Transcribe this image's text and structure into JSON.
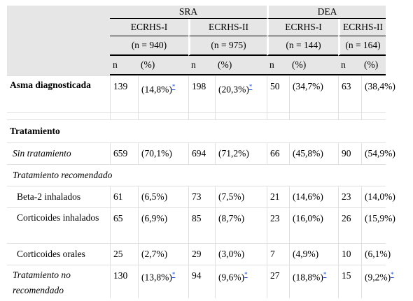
{
  "header": {
    "groups": [
      "SRA",
      "DEA"
    ],
    "subgroups": [
      "ECRHS-I",
      "ECRHS-II",
      "ECRHS-I",
      "ECRHS-II"
    ],
    "ns": [
      "(n = 940)",
      "(n = 975)",
      "(n = 144)",
      "(n = 164)"
    ],
    "col_n": "n",
    "col_pct": "(%)"
  },
  "footnote_mark": "*",
  "rows": {
    "asma": {
      "label": "Asma diagnosticada",
      "v": [
        "139",
        "(14,8%)",
        "198",
        "(20,3%)",
        "50",
        "(34,7%)",
        "63",
        "(38,4%)"
      ]
    },
    "tratamiento": {
      "label": "Tratamiento"
    },
    "sin": {
      "label": "Sin tratamiento",
      "v": [
        "659",
        "(70,1%)",
        "694",
        "(71,2%)",
        "66",
        "(45,8%)",
        "90",
        "(54,9%)"
      ]
    },
    "recomendado": {
      "label": "Tratamiento recomendado"
    },
    "beta2": {
      "label": "Beta-2 inhalados",
      "v": [
        "61",
        "(6,5%)",
        "73",
        "(7,5%)",
        "21",
        "(14,6%)",
        "23",
        "(14,0%)"
      ]
    },
    "cort_inh": {
      "label": "Corticoides inhalados",
      "v": [
        "65",
        "(6,9%)",
        "85",
        "(8,7%)",
        "23",
        "(16,0%)",
        "26",
        "(15,9%)"
      ]
    },
    "cort_or": {
      "label": "Corticoides orales",
      "v": [
        "25",
        "(2,7%)",
        "29",
        "(3,0%)",
        "7",
        "(4,9%)",
        "10",
        "(6,1%)"
      ]
    },
    "no_rec": {
      "label": "Tratamiento no recomendado",
      "v": [
        "130",
        "(13,8%)",
        "94",
        "(9,6%)",
        "27",
        "(18,8%)",
        "15",
        "(9,2%)"
      ]
    }
  }
}
